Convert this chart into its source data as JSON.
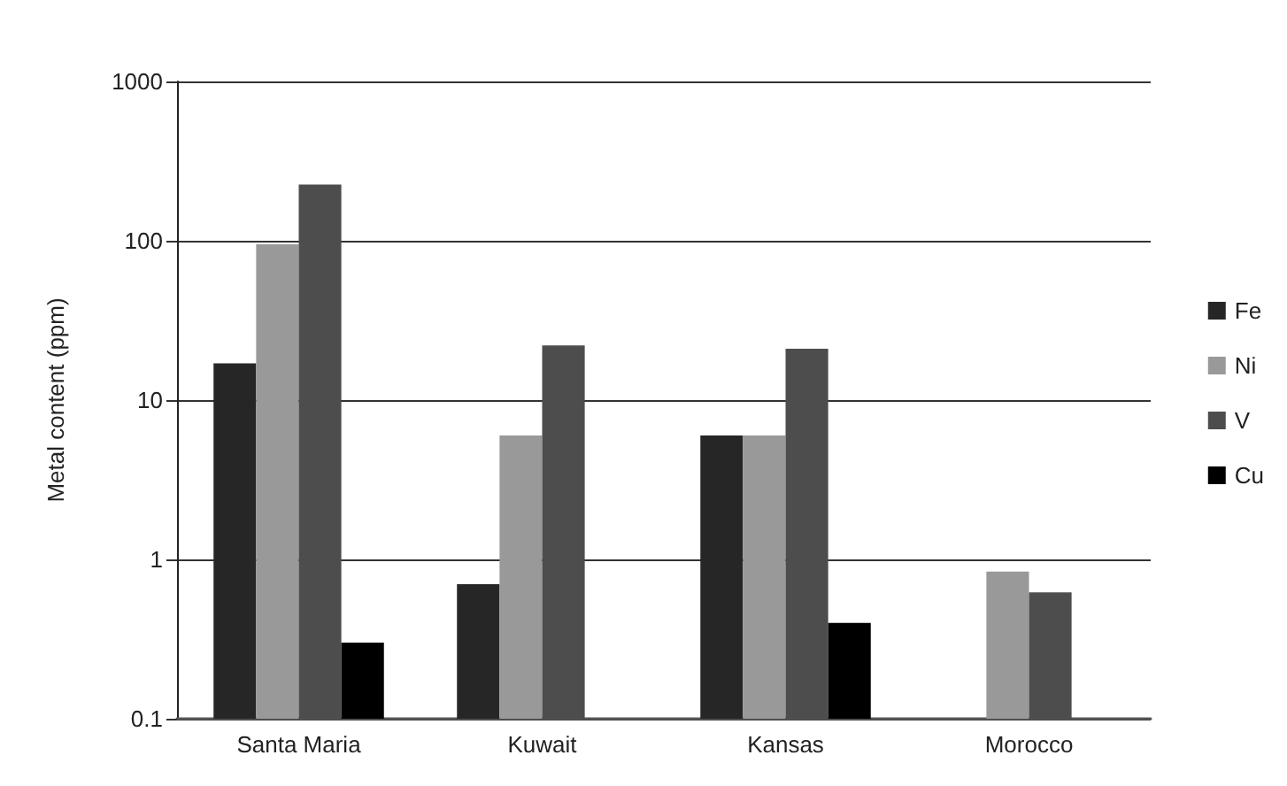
{
  "chart_data": {
    "type": "bar",
    "ylabel": "Metal content (ppm)",
    "categories": [
      "Santa Maria",
      "Kuwait",
      "Kansas",
      "Morocco"
    ],
    "series": [
      {
        "name": "Fe",
        "color": "#262626",
        "values": [
          17,
          0.7,
          6,
          null
        ]
      },
      {
        "name": "Ni",
        "color": "#999999",
        "values": [
          95,
          6,
          6,
          0.84
        ]
      },
      {
        "name": "V",
        "color": "#4d4d4d",
        "values": [
          225,
          22,
          21,
          0.62
        ]
      },
      {
        "name": "Cu",
        "color": "#000000",
        "values": [
          0.3,
          null,
          0.4,
          null
        ]
      }
    ],
    "log": "y",
    "ylim": [
      0.1,
      1000
    ],
    "yticks": [
      0.1,
      1,
      10,
      100,
      1000
    ],
    "grid": "y",
    "legend": "right"
  }
}
